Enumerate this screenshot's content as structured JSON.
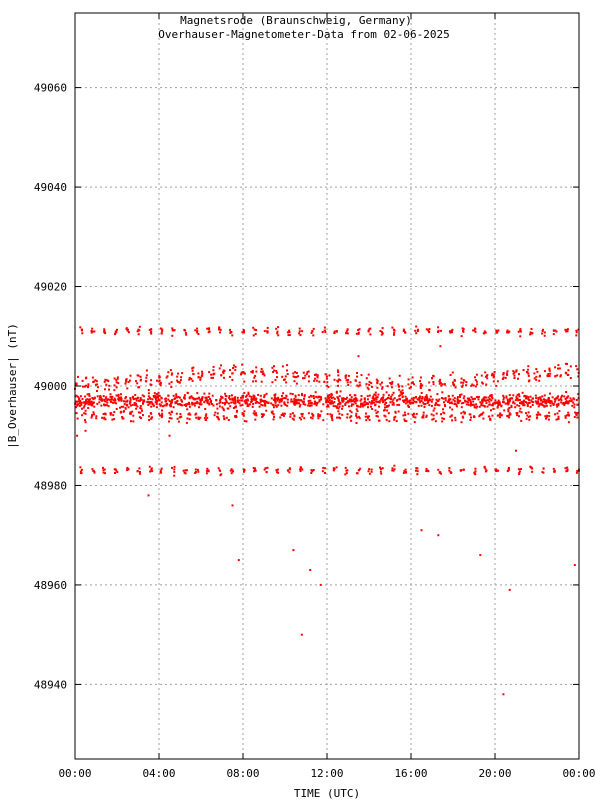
{
  "chart_data": {
    "type": "scatter",
    "title": "Magnetsrode (Braunschweig, Germany)",
    "subtitle": "Overhauser-Magnetometer-Data from 02-06-2025",
    "xlabel": "TIME (UTC)",
    "ylabel": "|B_Overhauser| (nT)",
    "x_unit": "hours UTC",
    "xlim": [
      0,
      24
    ],
    "ylim": [
      48925,
      49075
    ],
    "x_ticks": [
      0,
      4,
      8,
      12,
      16,
      20,
      24
    ],
    "x_tick_labels": [
      "00:00",
      "04:00",
      "08:00",
      "12:00",
      "16:00",
      "20:00",
      "00:00"
    ],
    "y_ticks": [
      48940,
      48960,
      48980,
      49000,
      49020,
      49040,
      49060
    ],
    "y_tick_labels": [
      "48940",
      "48960",
      "48980",
      "49000",
      "49020",
      "49040",
      "49060"
    ],
    "grid": true,
    "color": "#ff0000",
    "bands": [
      {
        "level": 49011,
        "spread": 1.2,
        "gap_hours": 0.55,
        "cluster_hours": 0.16,
        "x_start": 0.3,
        "x_end": 24.0,
        "density": 5
      },
      {
        "level": 49001.5,
        "spread": 2.4,
        "gap_hours": 0.5,
        "cluster_hours": 0.3,
        "x_start": 0.0,
        "x_end": 24.0,
        "density": 9
      },
      {
        "level": 48997,
        "spread": 2.2,
        "gap_hours": 0.0,
        "cluster_hours": 0.0,
        "x_start": 0.0,
        "x_end": 24.0,
        "density": 1200
      },
      {
        "level": 48994,
        "spread": 1.8,
        "gap_hours": 0.45,
        "cluster_hours": 0.25,
        "x_start": 0.0,
        "x_end": 24.0,
        "density": 7
      },
      {
        "level": 48983,
        "spread": 1.2,
        "gap_hours": 0.55,
        "cluster_hours": 0.16,
        "x_start": 0.3,
        "x_end": 24.0,
        "density": 5
      }
    ],
    "outliers": [
      {
        "x": 0.1,
        "y": 48990
      },
      {
        "x": 0.5,
        "y": 48991
      },
      {
        "x": 3.5,
        "y": 48978
      },
      {
        "x": 4.5,
        "y": 48990
      },
      {
        "x": 7.5,
        "y": 48976
      },
      {
        "x": 7.8,
        "y": 48965
      },
      {
        "x": 10.4,
        "y": 48967
      },
      {
        "x": 10.8,
        "y": 48950
      },
      {
        "x": 11.2,
        "y": 48963
      },
      {
        "x": 11.7,
        "y": 48960
      },
      {
        "x": 13.5,
        "y": 49006
      },
      {
        "x": 16.5,
        "y": 48971
      },
      {
        "x": 17.3,
        "y": 48970
      },
      {
        "x": 17.4,
        "y": 49008
      },
      {
        "x": 19.3,
        "y": 48966
      },
      {
        "x": 20.4,
        "y": 48938
      },
      {
        "x": 20.7,
        "y": 48959
      },
      {
        "x": 21.0,
        "y": 48987
      },
      {
        "x": 23.8,
        "y": 48964
      }
    ]
  }
}
